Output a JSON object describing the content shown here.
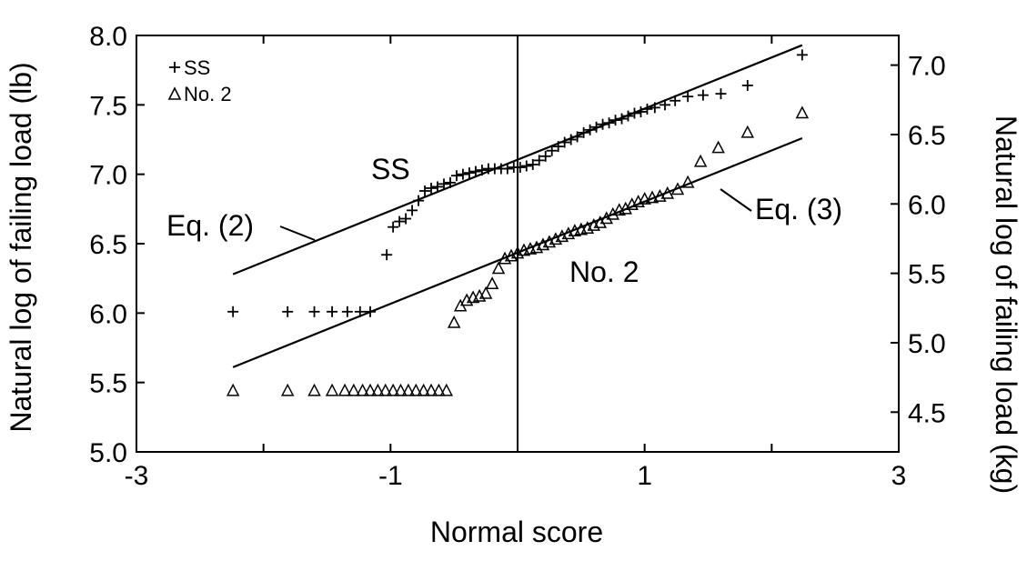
{
  "chart_data": {
    "type": "scatter",
    "title": "",
    "xlabel": "Normal score",
    "ylabel": "Natural log of failing load (lb)",
    "ylabel_right": "Natural log of failing load (kg)",
    "xlim": [
      -3,
      3
    ],
    "ylim": [
      5.0,
      8.0
    ],
    "ylim_right": [
      4.2137,
      7.2137
    ],
    "x_ticks": [
      "-3",
      "-1",
      "1",
      "3"
    ],
    "y_ticks": [
      "5.0",
      "5.5",
      "6.0",
      "6.5",
      "7.0",
      "7.5",
      "8.0"
    ],
    "y_ticks_right": [
      "4.5",
      "5.0",
      "5.5",
      "6.0",
      "6.5",
      "7.0"
    ],
    "grid": false,
    "legend_position": "top-left",
    "reference_line_x": 0,
    "series": [
      {
        "name": "SS",
        "marker": "plus",
        "points": [
          [
            -2.24,
            6.01
          ],
          [
            -1.81,
            6.01
          ],
          [
            -1.6,
            6.01
          ],
          [
            -1.46,
            6.01
          ],
          [
            -1.34,
            6.01
          ],
          [
            -1.24,
            6.01
          ],
          [
            -1.16,
            6.01
          ],
          [
            -1.03,
            6.42
          ],
          [
            -0.98,
            6.62
          ],
          [
            -0.93,
            6.66
          ],
          [
            -0.88,
            6.68
          ],
          [
            -0.83,
            6.74
          ],
          [
            -0.78,
            6.81
          ],
          [
            -0.73,
            6.88
          ],
          [
            -0.68,
            6.9
          ],
          [
            -0.63,
            6.91
          ],
          [
            -0.58,
            6.93
          ],
          [
            -0.53,
            6.94
          ],
          [
            -0.48,
            6.99
          ],
          [
            -0.43,
            7.0
          ],
          [
            -0.38,
            7.01
          ],
          [
            -0.33,
            7.02
          ],
          [
            -0.28,
            7.03
          ],
          [
            -0.23,
            7.04
          ],
          [
            -0.18,
            7.04
          ],
          [
            -0.13,
            7.04
          ],
          [
            -0.08,
            7.04
          ],
          [
            -0.03,
            7.05
          ],
          [
            0.02,
            7.05
          ],
          [
            0.07,
            7.06
          ],
          [
            0.12,
            7.07
          ],
          [
            0.17,
            7.1
          ],
          [
            0.22,
            7.13
          ],
          [
            0.27,
            7.17
          ],
          [
            0.32,
            7.2
          ],
          [
            0.37,
            7.23
          ],
          [
            0.42,
            7.25
          ],
          [
            0.47,
            7.27
          ],
          [
            0.52,
            7.3
          ],
          [
            0.57,
            7.32
          ],
          [
            0.62,
            7.34
          ],
          [
            0.67,
            7.36
          ],
          [
            0.72,
            7.37
          ],
          [
            0.77,
            7.39
          ],
          [
            0.82,
            7.4
          ],
          [
            0.87,
            7.42
          ],
          [
            0.92,
            7.44
          ],
          [
            0.97,
            7.45
          ],
          [
            1.02,
            7.47
          ],
          [
            1.08,
            7.48
          ],
          [
            1.16,
            7.5
          ],
          [
            1.24,
            7.53
          ],
          [
            1.34,
            7.56
          ],
          [
            1.46,
            7.57
          ],
          [
            1.6,
            7.58
          ],
          [
            1.81,
            7.64
          ],
          [
            2.24,
            7.86
          ]
        ]
      },
      {
        "name": "No. 2",
        "marker": "triangle",
        "points": [
          [
            -2.24,
            5.44
          ],
          [
            -1.81,
            5.44
          ],
          [
            -1.6,
            5.44
          ],
          [
            -1.46,
            5.44
          ],
          [
            -1.36,
            5.44
          ],
          [
            -1.29,
            5.44
          ],
          [
            -1.22,
            5.44
          ],
          [
            -1.16,
            5.44
          ],
          [
            -1.1,
            5.44
          ],
          [
            -1.04,
            5.44
          ],
          [
            -0.98,
            5.44
          ],
          [
            -0.92,
            5.44
          ],
          [
            -0.86,
            5.44
          ],
          [
            -0.8,
            5.44
          ],
          [
            -0.74,
            5.44
          ],
          [
            -0.68,
            5.44
          ],
          [
            -0.62,
            5.44
          ],
          [
            -0.56,
            5.44
          ],
          [
            -0.5,
            5.93
          ],
          [
            -0.45,
            6.05
          ],
          [
            -0.4,
            6.09
          ],
          [
            -0.35,
            6.11
          ],
          [
            -0.3,
            6.12
          ],
          [
            -0.25,
            6.14
          ],
          [
            -0.2,
            6.21
          ],
          [
            -0.15,
            6.32
          ],
          [
            -0.1,
            6.39
          ],
          [
            -0.05,
            6.41
          ],
          [
            0.0,
            6.43
          ],
          [
            0.05,
            6.45
          ],
          [
            0.1,
            6.46
          ],
          [
            0.15,
            6.47
          ],
          [
            0.2,
            6.49
          ],
          [
            0.25,
            6.51
          ],
          [
            0.3,
            6.53
          ],
          [
            0.35,
            6.55
          ],
          [
            0.4,
            6.57
          ],
          [
            0.45,
            6.59
          ],
          [
            0.5,
            6.6
          ],
          [
            0.55,
            6.61
          ],
          [
            0.6,
            6.63
          ],
          [
            0.65,
            6.65
          ],
          [
            0.7,
            6.68
          ],
          [
            0.75,
            6.71
          ],
          [
            0.8,
            6.74
          ],
          [
            0.85,
            6.75
          ],
          [
            0.9,
            6.78
          ],
          [
            0.95,
            6.8
          ],
          [
            1.0,
            6.82
          ],
          [
            1.06,
            6.83
          ],
          [
            1.12,
            6.84
          ],
          [
            1.18,
            6.86
          ],
          [
            1.26,
            6.89
          ],
          [
            1.34,
            6.94
          ],
          [
            1.44,
            7.09
          ],
          [
            1.58,
            7.19
          ],
          [
            1.81,
            7.3
          ],
          [
            2.24,
            7.44
          ]
        ]
      }
    ],
    "fit_lines": [
      {
        "label": "Eq. (2)",
        "points": [
          [
            -2.24,
            6.28
          ],
          [
            2.24,
            7.93
          ]
        ]
      },
      {
        "label": "Eq. (3)",
        "points": [
          [
            -2.24,
            5.61
          ],
          [
            2.24,
            7.26
          ]
        ]
      }
    ],
    "annotations": [
      "SS",
      "No. 2"
    ]
  }
}
